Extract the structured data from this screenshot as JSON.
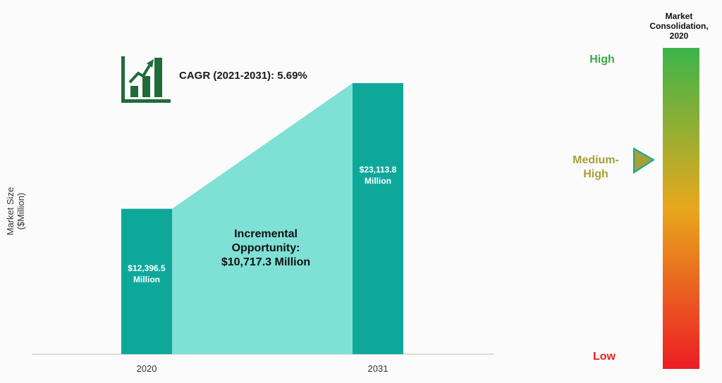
{
  "chart_data": [
    {
      "type": "bar",
      "categories": [
        "2020",
        "2031"
      ],
      "values": [
        12396.5,
        23113.8
      ],
      "ylabel": "Market Size ($Million)",
      "ylim": [
        0,
        24500
      ],
      "data_labels": [
        "$12,396.5 Million",
        "$23,113.8 Million"
      ],
      "annotations": {
        "cagr": "CAGR (2021-2031): 5.69%",
        "incremental": "Incremental Opportunity: $10,717.3 Million"
      }
    },
    {
      "type": "gauge",
      "title": "Market Consolidation, 2020",
      "levels": [
        "High",
        "Medium-High",
        "Low"
      ],
      "selected_level": "Medium-High",
      "gradient_colors": [
        "#3cb54a",
        "#e8a81c",
        "#ed1c24"
      ]
    }
  ],
  "text": {
    "ylabel_line1": "Market Size",
    "ylabel_line2": "($Million)",
    "cagr": "CAGR (2021-2031): 5.69%",
    "incr_line1": "Incremental",
    "incr_line2": "Opportunity:",
    "incr_line3": "$10,717.3 Million",
    "bar1_line1": "$12,396.5",
    "bar1_line2": "Million",
    "bar2_line1": "$23,113.8",
    "bar2_line2": "Million",
    "tick1": "2020",
    "tick2": "2031",
    "cons_line1": "Market",
    "cons_line2": "Consolidation,",
    "cons_line3": "2020",
    "level_high": "High",
    "level_mh_line1": "Medium-",
    "level_mh_line2": "High",
    "level_low": "Low"
  },
  "colors": {
    "bar": "#0ea89b",
    "opportunity": "#7fe0d6",
    "icon": "#1f6b3a",
    "high": "#39a84a",
    "medium_high": "#a8a034",
    "low": "#e8201e"
  },
  "icons": {
    "cagr": "growth-chart-icon",
    "marker": "triangle-pointer-icon"
  }
}
